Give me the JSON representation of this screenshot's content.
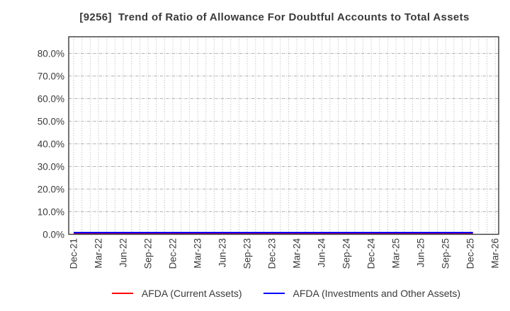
{
  "title": "[9256]  Trend of Ratio of Allowance For Doubtful Accounts to Total Assets",
  "chart_data": {
    "type": "line",
    "title": "[9256]  Trend of Ratio of Allowance For Doubtful Accounts to Total Assets",
    "xlabel": "",
    "ylabel": "",
    "x_tick_labels": [
      "Dec-21",
      "Mar-22",
      "Jun-22",
      "Sep-22",
      "Dec-22",
      "Mar-23",
      "Jun-23",
      "Sep-23",
      "Dec-23",
      "Mar-24",
      "Jun-24",
      "Sep-24",
      "Dec-24",
      "Mar-25",
      "Jun-25",
      "Sep-25",
      "Dec-25",
      "Mar-26"
    ],
    "months_span": 51,
    "y_tick_labels": [
      "0.0%",
      "10.0%",
      "20.0%",
      "30.0%",
      "40.0%",
      "50.0%",
      "60.0%",
      "70.0%",
      "80.0%"
    ],
    "y_tick_values": [
      0,
      10,
      20,
      30,
      40,
      50,
      60,
      70,
      80
    ],
    "ylim": [
      0,
      87.3
    ],
    "grid": {
      "horizontal": "dash-dot",
      "vertical": "dotted-monthly",
      "color": "#b0b0b0"
    },
    "legend_position": "bottom",
    "series": [
      {
        "name": "AFDA (Current Assets)",
        "color": "#ff0000",
        "x": [
          "Dec-21",
          "Mar-22",
          "Jun-22",
          "Sep-22",
          "Dec-22",
          "Mar-23",
          "Jun-23",
          "Sep-23",
          "Dec-23",
          "Mar-24",
          "Jun-24",
          "Sep-24",
          "Dec-24",
          "Mar-25",
          "Jun-25",
          "Sep-25",
          "Dec-25"
        ],
        "values": [
          0.25,
          0.25,
          0.25,
          0.25,
          0.25,
          0.25,
          0.25,
          0.25,
          0.25,
          0.25,
          0.25,
          0.25,
          0.25,
          0.25,
          0.25,
          0.25,
          0.25
        ]
      },
      {
        "name": "AFDA (Investments and Other Assets)",
        "color": "#0000ff",
        "x": [
          "Dec-21",
          "Mar-22",
          "Jun-22",
          "Sep-22",
          "Dec-22",
          "Mar-23",
          "Jun-23",
          "Sep-23",
          "Dec-23",
          "Mar-24",
          "Jun-24",
          "Sep-24",
          "Dec-24",
          "Mar-25",
          "Jun-25",
          "Sep-25",
          "Dec-25"
        ],
        "values": [
          0.75,
          0.75,
          0.75,
          0.75,
          0.75,
          0.75,
          0.75,
          0.75,
          0.75,
          0.75,
          0.75,
          0.75,
          0.75,
          0.75,
          0.75,
          0.75,
          0.75
        ]
      }
    ],
    "axis_color": "#3a3a3a",
    "text_color": "#3a3a3a"
  }
}
